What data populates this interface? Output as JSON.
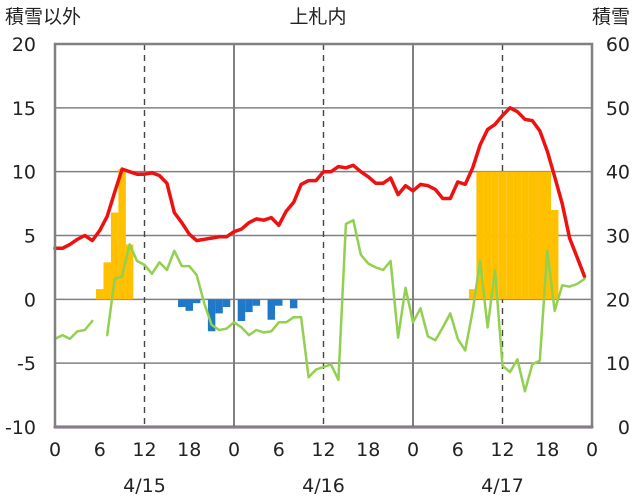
{
  "chart_data": {
    "type": "bar",
    "title": "上札内",
    "left_axis_label": "積雪以外",
    "right_axis_label": "積雪",
    "x_range_hours": [
      0,
      72
    ],
    "x_tick_labels": [
      "0",
      "6",
      "12",
      "18",
      "0",
      "6",
      "12",
      "18",
      "0",
      "6",
      "12",
      "18",
      "0"
    ],
    "x_tick_hours": [
      0,
      6,
      12,
      18,
      24,
      30,
      36,
      42,
      48,
      54,
      60,
      66,
      72
    ],
    "date_labels": [
      {
        "label": "4/15",
        "hour": 12
      },
      {
        "label": "4/16",
        "hour": 36
      },
      {
        "label": "4/17",
        "hour": 60
      }
    ],
    "y_left": {
      "min": -10,
      "max": 20,
      "ticks": [
        -10,
        -5,
        0,
        5,
        10,
        15,
        20
      ],
      "tick_labels": [
        "-10",
        "-5",
        "0",
        "5",
        "10",
        "15",
        "20"
      ]
    },
    "y_right": {
      "min": 0,
      "max": 60,
      "ticks": [
        0,
        10,
        20,
        30,
        40,
        50,
        60
      ],
      "tick_labels": [
        "0",
        "10",
        "20",
        "30",
        "40",
        "50",
        "60"
      ]
    },
    "colors": {
      "red_line": "#ee1111",
      "green_line": "#92d050",
      "orange_bar": "#ffc000",
      "blue_bar": "#1f78c8",
      "purple_line": "#7030a0",
      "grid_solid": "#808080",
      "grid_dashed": "#444444"
    },
    "series": [
      {
        "type": "line",
        "color_key": "red_line",
        "points": [
          [
            0,
            4.0
          ],
          [
            1,
            4.0
          ],
          [
            2,
            4.3
          ],
          [
            3,
            4.7
          ],
          [
            4,
            5.0
          ],
          [
            5,
            4.6
          ],
          [
            6,
            5.4
          ],
          [
            7,
            6.5
          ],
          [
            8,
            8.4
          ],
          [
            9,
            10.2
          ],
          [
            10,
            10.0
          ],
          [
            11,
            9.8
          ],
          [
            12,
            9.8
          ],
          [
            13,
            9.9
          ],
          [
            14,
            9.7
          ],
          [
            15,
            9.1
          ],
          [
            16,
            6.8
          ],
          [
            17,
            6.0
          ],
          [
            18,
            5.1
          ],
          [
            19,
            4.6
          ],
          [
            20,
            4.7
          ],
          [
            21,
            4.8
          ],
          [
            22,
            4.9
          ],
          [
            23,
            4.9
          ],
          [
            24,
            5.3
          ],
          [
            25,
            5.5
          ],
          [
            26,
            6.0
          ],
          [
            27,
            6.3
          ],
          [
            28,
            6.2
          ],
          [
            29,
            6.4
          ],
          [
            30,
            5.8
          ],
          [
            31,
            6.9
          ],
          [
            32,
            7.6
          ],
          [
            33,
            9.0
          ],
          [
            34,
            9.3
          ],
          [
            35,
            9.3
          ],
          [
            36,
            10.0
          ],
          [
            37,
            10.0
          ],
          [
            38,
            10.4
          ],
          [
            39,
            10.3
          ],
          [
            40,
            10.5
          ],
          [
            41,
            10.0
          ],
          [
            42,
            9.6
          ],
          [
            43,
            9.1
          ],
          [
            44,
            9.1
          ],
          [
            45,
            9.5
          ],
          [
            46,
            8.2
          ],
          [
            47,
            8.9
          ],
          [
            48,
            8.5
          ],
          [
            49,
            9.0
          ],
          [
            50,
            8.9
          ],
          [
            51,
            8.6
          ],
          [
            52,
            7.9
          ],
          [
            53,
            7.9
          ],
          [
            54,
            9.2
          ],
          [
            55,
            9.0
          ],
          [
            56,
            10.3
          ],
          [
            57,
            12.1
          ],
          [
            58,
            13.3
          ],
          [
            59,
            13.7
          ],
          [
            60,
            14.4
          ],
          [
            61,
            15.0
          ],
          [
            62,
            14.7
          ],
          [
            63,
            14.1
          ],
          [
            64,
            14.0
          ],
          [
            65,
            13.2
          ],
          [
            66,
            11.6
          ],
          [
            67,
            9.6
          ],
          [
            68,
            7.5
          ],
          [
            69,
            4.8
          ],
          [
            70,
            3.3
          ],
          [
            71,
            1.8
          ]
        ]
      },
      {
        "type": "line",
        "color_key": "green_line",
        "segments": [
          [
            [
              0,
              -3.1
            ],
            [
              1,
              -2.8
            ],
            [
              2,
              -3.1
            ],
            [
              3,
              -2.5
            ],
            [
              4,
              -2.4
            ],
            [
              5,
              -1.7
            ]
          ],
          [
            [
              7,
              -2.8
            ],
            [
              8,
              1.6
            ],
            [
              9,
              1.8
            ],
            [
              10,
              4.3
            ],
            [
              11,
              3.0
            ],
            [
              12,
              2.7
            ],
            [
              13,
              2.0
            ],
            [
              14,
              2.9
            ],
            [
              15,
              2.3
            ],
            [
              16,
              3.8
            ],
            [
              17,
              2.6
            ],
            [
              18,
              2.6
            ],
            [
              19,
              1.9
            ],
            [
              20,
              -0.3
            ],
            [
              21,
              -2.0
            ],
            [
              22,
              -2.4
            ],
            [
              23,
              -2.3
            ],
            [
              24,
              -1.8
            ],
            [
              25,
              -2.2
            ],
            [
              26,
              -2.8
            ],
            [
              27,
              -2.4
            ],
            [
              28,
              -2.6
            ],
            [
              29,
              -2.5
            ],
            [
              30,
              -1.8
            ],
            [
              31,
              -1.8
            ],
            [
              32,
              -1.4
            ],
            [
              33,
              -1.4
            ],
            [
              34,
              -6.1
            ],
            [
              35,
              -5.5
            ],
            [
              36,
              -5.3
            ],
            [
              37,
              -5.1
            ],
            [
              38,
              -6.3
            ],
            [
              39,
              5.9
            ],
            [
              40,
              6.2
            ],
            [
              41,
              3.5
            ],
            [
              42,
              2.8
            ],
            [
              43,
              2.5
            ],
            [
              44,
              2.3
            ],
            [
              45,
              3.0
            ],
            [
              46,
              -3.0
            ],
            [
              47,
              0.9
            ],
            [
              48,
              -1.8
            ],
            [
              49,
              -0.7
            ],
            [
              50,
              -2.9
            ],
            [
              51,
              -3.2
            ],
            [
              52,
              -2.2
            ],
            [
              53,
              -1.1
            ],
            [
              54,
              -3.1
            ],
            [
              55,
              -4.0
            ],
            [
              56,
              -0.9
            ],
            [
              57,
              3.0
            ],
            [
              58,
              -2.2
            ],
            [
              59,
              2.3
            ],
            [
              60,
              -5.2
            ],
            [
              61,
              -5.7
            ],
            [
              62,
              -4.7
            ],
            [
              63,
              -7.2
            ],
            [
              64,
              -5.1
            ],
            [
              65,
              -4.8
            ],
            [
              66,
              3.8
            ],
            [
              67,
              -0.9
            ],
            [
              68,
              1.1
            ],
            [
              69,
              1.0
            ],
            [
              70,
              1.2
            ],
            [
              71,
              1.6
            ]
          ]
        ]
      },
      {
        "type": "bar",
        "axis": "left",
        "color_key": "orange_bar",
        "bars": [
          [
            6,
            0.8
          ],
          [
            7,
            2.9
          ],
          [
            8,
            6.8
          ],
          [
            9,
            10.2
          ],
          [
            10,
            4.3
          ],
          [
            56,
            0.8
          ],
          [
            57,
            10.0
          ],
          [
            58,
            10.0
          ],
          [
            59,
            10.0
          ],
          [
            60,
            10.0
          ],
          [
            61,
            10.0
          ],
          [
            62,
            10.0
          ],
          [
            63,
            10.0
          ],
          [
            64,
            10.0
          ],
          [
            65,
            10.0
          ],
          [
            66,
            10.0
          ],
          [
            67,
            7.0
          ]
        ]
      },
      {
        "type": "bar",
        "axis": "left",
        "color_key": "blue_bar",
        "bars": [
          [
            17,
            -0.6
          ],
          [
            18,
            -0.9
          ],
          [
            19,
            -0.3
          ],
          [
            21,
            -2.5
          ],
          [
            22,
            -1.1
          ],
          [
            23,
            -0.6
          ],
          [
            25,
            -1.7
          ],
          [
            26,
            -1.0
          ],
          [
            27,
            -0.5
          ],
          [
            29,
            -1.6
          ],
          [
            30,
            -0.5
          ],
          [
            32,
            -0.7
          ]
        ]
      },
      {
        "type": "line",
        "color_key": "purple_line",
        "axis": "right",
        "points": [
          [
            0,
            0
          ],
          [
            72,
            0
          ]
        ]
      }
    ]
  }
}
